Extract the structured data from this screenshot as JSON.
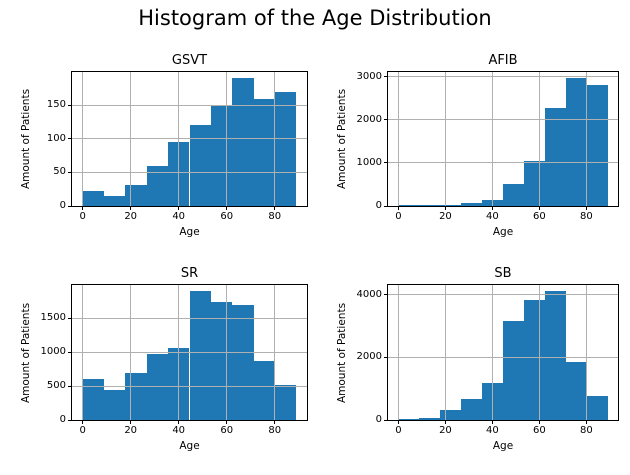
{
  "figure": {
    "suptitle": "Histogram of the Age Distribution"
  },
  "style": {
    "bar_color": "#1f77b4",
    "grid_color": "#b0b0b0",
    "axis_color": "#000000",
    "background": "#ffffff"
  },
  "chart_data": [
    {
      "type": "bar",
      "subtype": "histogram",
      "title": "GSVT",
      "xlabel": "Age",
      "ylabel": "Amount of Patients",
      "bin_edges": [
        0,
        8.9,
        17.8,
        26.7,
        35.6,
        44.5,
        53.4,
        62.3,
        71.2,
        80.1,
        89
      ],
      "values": [
        22,
        15,
        32,
        60,
        95,
        121,
        150,
        190,
        160,
        170
      ],
      "xticks": [
        0,
        20,
        40,
        60,
        80
      ],
      "yticks": [
        0,
        50,
        100,
        150
      ],
      "xlim": [
        -4.45,
        93.45
      ],
      "ylim": [
        0,
        199.5
      ],
      "grid": true,
      "legend_position": "none"
    },
    {
      "type": "bar",
      "subtype": "histogram",
      "title": "AFIB",
      "xlabel": "Age",
      "ylabel": "Amount of Patients",
      "bin_edges": [
        0,
        8.9,
        17.8,
        26.7,
        35.6,
        44.5,
        53.4,
        62.3,
        71.2,
        80.1,
        89
      ],
      "values": [
        35,
        12,
        30,
        75,
        150,
        500,
        1050,
        2270,
        2960,
        2810
      ],
      "xticks": [
        0,
        20,
        40,
        60,
        80
      ],
      "yticks": [
        0,
        1000,
        2000,
        3000
      ],
      "xlim": [
        -4.45,
        93.45
      ],
      "ylim": [
        0,
        3108
      ],
      "grid": true,
      "legend_position": "none"
    },
    {
      "type": "bar",
      "subtype": "histogram",
      "title": "SR",
      "xlabel": "Age",
      "ylabel": "Amount of Patients",
      "bin_edges": [
        0,
        8.9,
        17.8,
        26.7,
        35.6,
        44.5,
        53.4,
        62.3,
        71.2,
        80.1,
        89
      ],
      "values": [
        600,
        445,
        700,
        970,
        1060,
        1895,
        1745,
        1690,
        870,
        510
      ],
      "xticks": [
        0,
        20,
        40,
        60,
        80
      ],
      "yticks": [
        0,
        500,
        1000,
        1500
      ],
      "xlim": [
        -4.45,
        93.45
      ],
      "ylim": [
        0,
        1990
      ],
      "grid": true,
      "legend_position": "none"
    },
    {
      "type": "bar",
      "subtype": "histogram",
      "title": "SB",
      "xlabel": "Age",
      "ylabel": "Amount of Patients",
      "bin_edges": [
        0,
        8.9,
        17.8,
        26.7,
        35.6,
        44.5,
        53.4,
        62.3,
        71.2,
        80.1,
        89
      ],
      "values": [
        25,
        60,
        330,
        680,
        1190,
        3160,
        3840,
        4100,
        1840,
        760
      ],
      "xticks": [
        0,
        20,
        40,
        60,
        80
      ],
      "yticks": [
        0,
        2000,
        4000
      ],
      "xlim": [
        -4.45,
        93.45
      ],
      "ylim": [
        0,
        4305
      ],
      "grid": true,
      "legend_position": "none"
    }
  ]
}
